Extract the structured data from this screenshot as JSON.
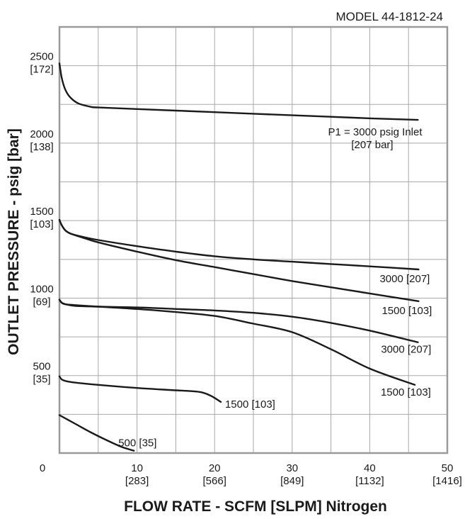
{
  "chart_data": {
    "type": "line",
    "model": "MODEL 44-1812-24",
    "xlabel": "FLOW RATE - SCFM [SLPM] Nitrogen",
    "ylabel": "OUTLET PRESSURE - psig [bar]",
    "xlim": [
      0,
      50
    ],
    "ylim": [
      0,
      2750
    ],
    "grid": true,
    "x_ticks": [
      {
        "value": 0,
        "label": "0",
        "sub": ""
      },
      {
        "value": 10,
        "label": "10",
        "sub": "[283]"
      },
      {
        "value": 20,
        "label": "20",
        "sub": "[566]"
      },
      {
        "value": 30,
        "label": "30",
        "sub": "[849]"
      },
      {
        "value": 40,
        "label": "40",
        "sub": "[1132]"
      },
      {
        "value": 50,
        "label": "50",
        "sub": "[1416]"
      }
    ],
    "y_ticks": [
      {
        "value": 500,
        "label": "500",
        "sub": "[35]"
      },
      {
        "value": 1000,
        "label": "1000",
        "sub": "[69]"
      },
      {
        "value": 1500,
        "label": "1500",
        "sub": "[103]"
      },
      {
        "value": 2000,
        "label": "2000",
        "sub": "[138]"
      },
      {
        "value": 2500,
        "label": "2500",
        "sub": "[172]"
      }
    ],
    "inlet_note": [
      "P1 = 3000 psig Inlet",
      "[207 bar]"
    ],
    "series": [
      {
        "name": "2500 setting, 3000 psig inlet",
        "label": "",
        "x": [
          0,
          0.3,
          0.8,
          1.5,
          2.5,
          4,
          5,
          10,
          20,
          30,
          40,
          46.2
        ],
        "y": [
          2515,
          2420,
          2340,
          2290,
          2255,
          2235,
          2230,
          2220,
          2200,
          2180,
          2160,
          2150
        ]
      },
      {
        "name": "1500 setting, 3000 psig inlet",
        "label": "3000 [207]",
        "x": [
          0,
          0.3,
          0.8,
          1.5,
          3,
          5,
          10,
          15,
          20,
          25,
          30,
          35,
          40,
          46.3
        ],
        "y": [
          1505,
          1470,
          1435,
          1415,
          1395,
          1375,
          1335,
          1300,
          1270,
          1250,
          1235,
          1220,
          1205,
          1185
        ]
      },
      {
        "name": "1500 setting, 1500 psig inlet",
        "label": "1500 [103]",
        "x": [
          0,
          0.3,
          0.8,
          1.5,
          3,
          5,
          10,
          15,
          20,
          25,
          30,
          35,
          40,
          46.3
        ],
        "y": [
          1505,
          1470,
          1435,
          1415,
          1390,
          1360,
          1300,
          1245,
          1200,
          1155,
          1110,
          1070,
          1030,
          980
        ]
      },
      {
        "name": "1000 setting, 3000 psig inlet",
        "label": "3000 [207]",
        "x": [
          0,
          0.3,
          0.8,
          2,
          5,
          10,
          15,
          20,
          25,
          30,
          35,
          40,
          46.2
        ],
        "y": [
          990,
          970,
          960,
          950,
          945,
          940,
          930,
          920,
          905,
          880,
          840,
          790,
          715
        ]
      },
      {
        "name": "1000 setting, 1500 psig inlet",
        "label": "1500 [103]",
        "x": [
          0,
          0.3,
          0.8,
          2,
          5,
          10,
          15,
          20,
          25,
          30,
          35,
          40,
          45.8
        ],
        "y": [
          990,
          970,
          960,
          955,
          945,
          930,
          910,
          885,
          835,
          780,
          670,
          545,
          440
        ]
      },
      {
        "name": "500 setting, 1500 psig inlet",
        "label": "1500 [103]",
        "x": [
          0,
          0.3,
          0.8,
          2,
          5,
          10,
          15,
          18,
          19.5,
          20.8
        ],
        "y": [
          495,
          475,
          465,
          455,
          440,
          420,
          405,
          395,
          370,
          330
        ]
      },
      {
        "name": "500 setting, 500 psig inlet",
        "label": "500 [35]",
        "x": [
          0,
          2,
          4,
          6,
          8,
          9.6
        ],
        "y": [
          245,
          190,
          135,
          85,
          40,
          15
        ]
      }
    ]
  }
}
